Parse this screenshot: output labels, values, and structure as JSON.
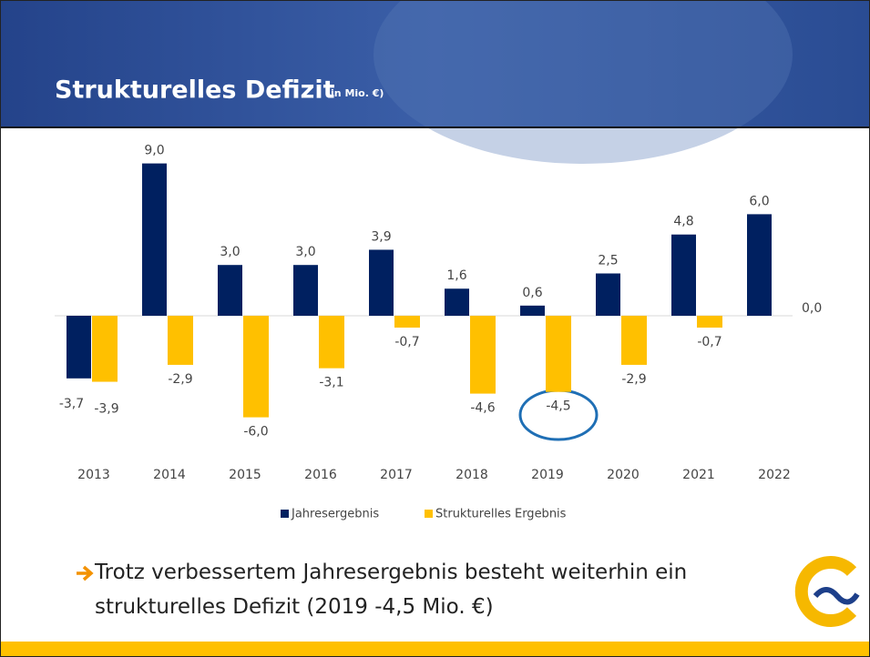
{
  "chart_data": {
    "type": "bar",
    "title": "Strukturelles Defizit",
    "subtitle": "(in Mio. €)",
    "categories": [
      "2013",
      "2014",
      "2015",
      "2016",
      "2017",
      "2018",
      "2019",
      "2020",
      "2021",
      "2022"
    ],
    "series": [
      {
        "name": "Jahresergebnis",
        "color": "#002060",
        "values": [
          -3.7,
          9.0,
          3.0,
          3.0,
          3.9,
          1.6,
          0.6,
          2.5,
          4.8,
          6.0
        ],
        "value_labels": [
          "-3,7",
          "9,0",
          "3,0",
          "3,0",
          "3,9",
          "1,6",
          "0,6",
          "2,5",
          "4,8",
          "6,0"
        ]
      },
      {
        "name": "Strukturelles Ergebnis",
        "color": "#FFC000",
        "values": [
          -3.9,
          -2.9,
          -6.0,
          -3.1,
          -0.7,
          -4.6,
          -4.5,
          -2.9,
          -0.7,
          0.0
        ],
        "value_labels": [
          "-3,9",
          "-2,9",
          "-6,0",
          "-3,1",
          "-0,7",
          "-4,6",
          "-4,5",
          "-2,9",
          "-0,7",
          "0,0"
        ]
      }
    ],
    "note": "Trotz verbessertem Jahresergebnis besteht weiterhin ein strukturelles Defizit (2019 -4,5 Mio. €)"
  }
}
